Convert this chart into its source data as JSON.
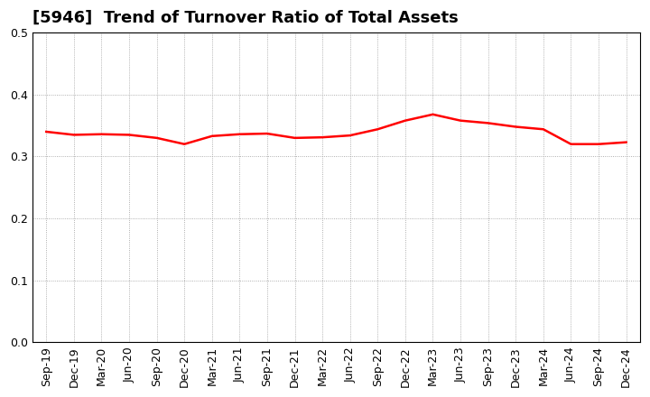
{
  "title": "[5946]  Trend of Turnover Ratio of Total Assets",
  "x_labels": [
    "Sep-19",
    "Dec-19",
    "Mar-20",
    "Jun-20",
    "Sep-20",
    "Dec-20",
    "Mar-21",
    "Jun-21",
    "Sep-21",
    "Dec-21",
    "Mar-22",
    "Jun-22",
    "Sep-22",
    "Dec-22",
    "Mar-23",
    "Jun-23",
    "Sep-23",
    "Dec-23",
    "Mar-24",
    "Jun-24",
    "Sep-24",
    "Dec-24"
  ],
  "y_values": [
    0.34,
    0.335,
    0.336,
    0.335,
    0.33,
    0.32,
    0.333,
    0.336,
    0.337,
    0.33,
    0.331,
    0.334,
    0.344,
    0.358,
    0.368,
    0.358,
    0.354,
    0.348,
    0.344,
    0.32,
    0.32,
    0.323
  ],
  "line_color": "#FF0000",
  "line_width": 1.8,
  "ylim": [
    0.0,
    0.5
  ],
  "yticks": [
    0.0,
    0.1,
    0.2,
    0.3,
    0.4,
    0.5
  ],
  "background_color": "#FFFFFF",
  "grid_color": "#999999",
  "title_fontsize": 13,
  "tick_fontsize": 9
}
